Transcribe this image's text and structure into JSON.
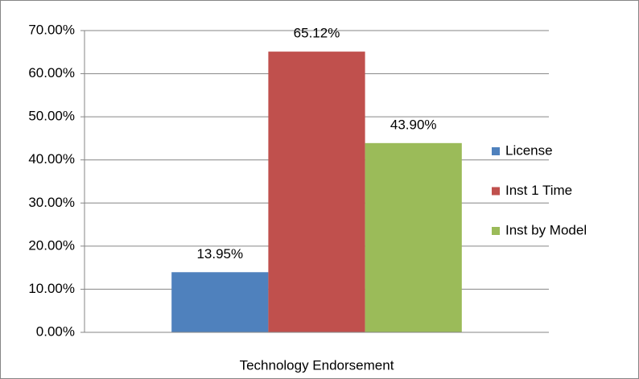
{
  "chart_data": {
    "type": "bar",
    "categories": [
      "Technology Endorsement"
    ],
    "series": [
      {
        "name": "License",
        "color": "#4f81bd",
        "values": [
          13.95
        ],
        "value_labels": [
          "13.95%"
        ]
      },
      {
        "name": "Inst 1 Time",
        "color": "#c0504d",
        "values": [
          65.12
        ],
        "value_labels": [
          "65.12%"
        ]
      },
      {
        "name": "Inst by Model",
        "color": "#9bbb59",
        "values": [
          43.9
        ],
        "value_labels": [
          "43.90%"
        ]
      }
    ],
    "ylim": [
      0,
      70
    ],
    "yticks": [
      {
        "value": 0,
        "label": "0.00%"
      },
      {
        "value": 10,
        "label": "10.00%"
      },
      {
        "value": 20,
        "label": "20.00%"
      },
      {
        "value": 30,
        "label": "30.00%"
      },
      {
        "value": 40,
        "label": "40.00%"
      },
      {
        "value": 50,
        "label": "50.00%"
      },
      {
        "value": 60,
        "label": "60.00%"
      },
      {
        "value": 70,
        "label": "70.00%"
      }
    ],
    "grid": true,
    "legend": "right"
  }
}
